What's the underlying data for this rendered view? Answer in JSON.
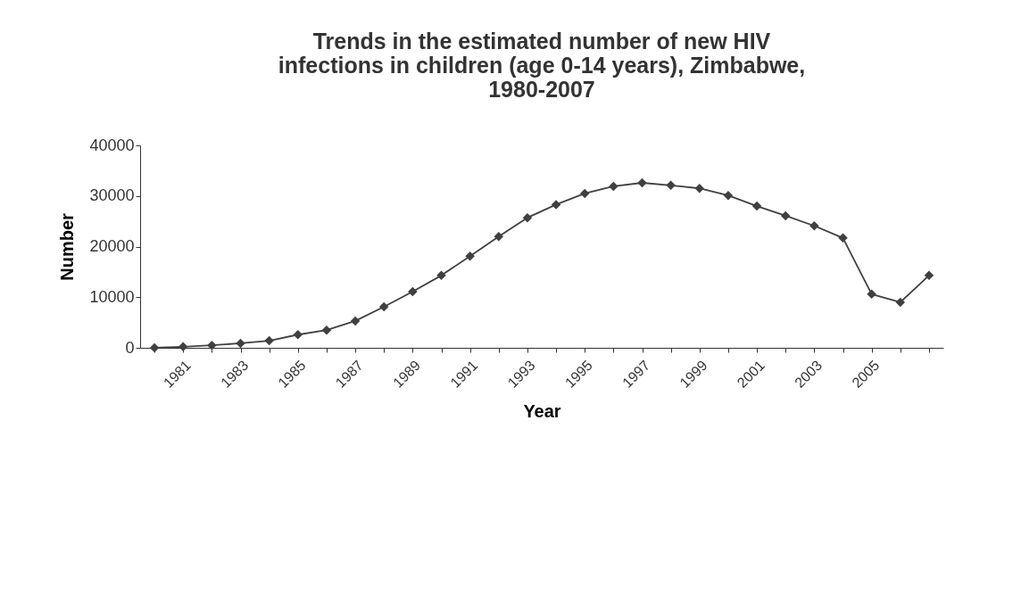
{
  "chart_data": {
    "type": "line",
    "title": "Trends in the estimated number of new HIV\ninfections in children (age 0-14 years), Zimbabwe,\n1980-2007",
    "xlabel": "Year",
    "ylabel": "Number",
    "categories": [
      null,
      "1981",
      null,
      "1983",
      null,
      "1985",
      null,
      "1987",
      null,
      "1989",
      null,
      "1991",
      null,
      "1993",
      null,
      "1995",
      null,
      "1997",
      null,
      "1999",
      null,
      "2001",
      null,
      "2003",
      null,
      "2005",
      null,
      null
    ],
    "series": [
      {
        "color": "#404040",
        "values": [
          0,
          200,
          500,
          900,
          1400,
          2600,
          3500,
          5300,
          8100,
          11100,
          14300,
          18100,
          22000,
          25700,
          28300,
          30500,
          31900,
          32600,
          32100,
          31500,
          30100,
          28000,
          26100,
          24100,
          21700,
          10600,
          9000,
          14300
        ]
      }
    ],
    "ylim": [
      0,
      40000
    ],
    "yticks": [
      0,
      10000,
      20000,
      30000,
      40000
    ],
    "grid": false,
    "marker": "diamond",
    "line_style": "solid"
  }
}
